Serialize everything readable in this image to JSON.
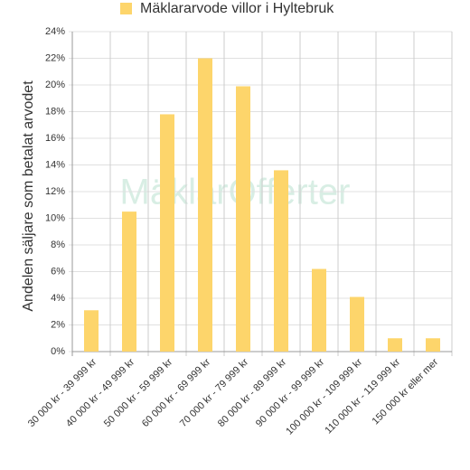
{
  "chart_data": {
    "type": "bar",
    "legend": "Mäklararvode villor i Hyltebruk",
    "y_label": "Andelen säljare som betalat arvodet",
    "watermark": "MäklarOfferter",
    "categories": [
      "30 000 kr - 39 999 kr",
      "40 000 kr - 49 999 kr",
      "50 000 kr - 59 999 kr",
      "60 000 kr - 69 999 kr",
      "70 000 kr - 79 999 kr",
      "80 000 kr - 89 999 kr",
      "90 000 kr - 99 999 kr",
      "100 000 kr - 109 999 kr",
      "110 000 kr - 119 999 kr",
      "150 000 kr eller mer"
    ],
    "values": [
      3.1,
      10.5,
      17.8,
      22.0,
      19.9,
      13.6,
      6.2,
      4.1,
      1.0,
      1.0
    ],
    "color": "#fdd56b",
    "ylim": [
      0,
      24
    ],
    "yticks": [
      {
        "value": 0,
        "label": "0%"
      },
      {
        "value": 2,
        "label": "2%"
      },
      {
        "value": 4,
        "label": "4%"
      },
      {
        "value": 6,
        "label": "6%"
      },
      {
        "value": 8,
        "label": "8%"
      },
      {
        "value": 10,
        "label": "10%"
      },
      {
        "value": 12,
        "label": "12%"
      },
      {
        "value": 14,
        "label": "14%"
      },
      {
        "value": 16,
        "label": "16%"
      },
      {
        "value": 18,
        "label": "18%"
      },
      {
        "value": 20,
        "label": "20%"
      },
      {
        "value": 22,
        "label": "22%"
      },
      {
        "value": 24,
        "label": "24%"
      }
    ],
    "grid": true
  }
}
